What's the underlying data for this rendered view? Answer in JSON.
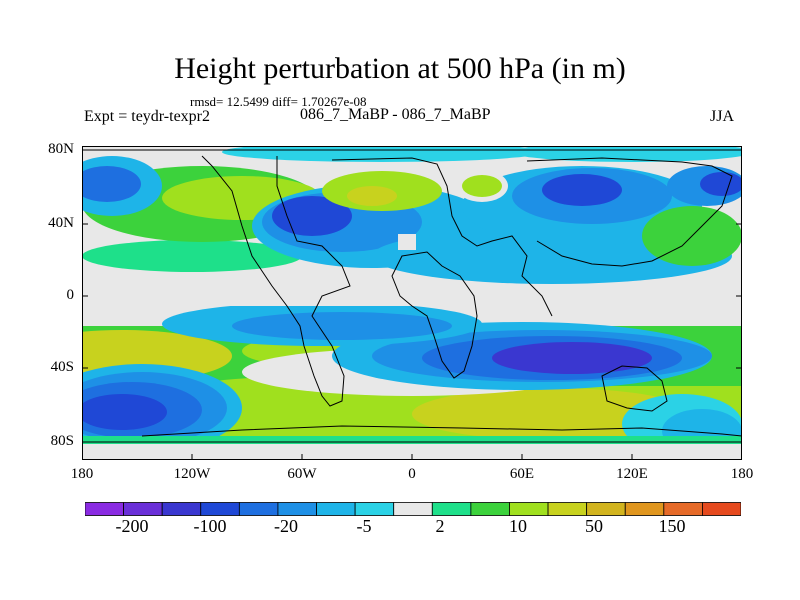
{
  "title": "Height perturbation at 500 hPa (in m)",
  "stats": "rmsd= 12.5499 diff= 1.70267e-08",
  "left_label": "Expt = teydr-texpr2",
  "center_label": "086_7_MaBP - 086_7_MaBP",
  "right_label": "JJA",
  "lat_labels": [
    "80N",
    "40N",
    "0",
    "40S",
    "80S"
  ],
  "lon_labels": [
    "180",
    "120W",
    "60W",
    "0",
    "60E",
    "120E",
    "180"
  ],
  "colorbar": {
    "colors": [
      "#8a2be2",
      "#6a2fd8",
      "#3a37d0",
      "#1f48d6",
      "#1e6fe0",
      "#1e90e6",
      "#1eb4e8",
      "#2bd2e6",
      "#e8e8e8",
      "#1ee08a",
      "#3cd23c",
      "#a0e01e",
      "#c8d21e",
      "#d2b41e",
      "#e0961e",
      "#e66a28",
      "#e64a1e"
    ],
    "labels": [
      "-200",
      "-100",
      "-20",
      "-5",
      "2",
      "10",
      "50",
      "150"
    ]
  }
}
